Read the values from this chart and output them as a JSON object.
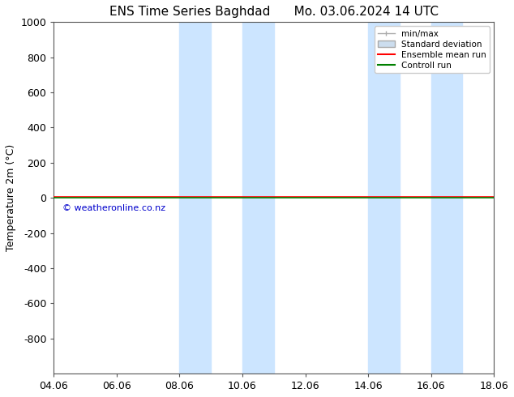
{
  "title": "ENS Time Series Baghdad",
  "title2": "Mo. 03.06.2024 14 UTC",
  "ylabel": "Temperature 2m (°C)",
  "xlabel": "",
  "xlim_dates": [
    "04.06",
    "06.06",
    "08.06",
    "10.06",
    "12.06",
    "14.06",
    "16.06",
    "18.06"
  ],
  "xtick_positions": [
    0,
    2,
    4,
    6,
    8,
    10,
    12,
    14
  ],
  "xtick_labels": [
    "04.06",
    "06.06",
    "08.06",
    "10.06",
    "12.06",
    "14.06",
    "16.06",
    "18.06"
  ],
  "ylim": [
    -1000,
    1000
  ],
  "ytick_positions": [
    -800,
    -600,
    -400,
    -200,
    0,
    200,
    400,
    600,
    800,
    1000
  ],
  "ytick_labels": [
    "-800",
    "-600",
    "-400",
    "-200",
    "0",
    "200",
    "400",
    "600",
    "800",
    "1000"
  ],
  "x_total": 14,
  "shaded_bands": [
    {
      "x_start": 4,
      "x_end": 5,
      "color": "#cce5ff"
    },
    {
      "x_start": 6,
      "x_end": 7,
      "color": "#cce5ff"
    },
    {
      "x_start": 10,
      "x_end": 11,
      "color": "#cce5ff"
    },
    {
      "x_start": 12,
      "x_end": 13,
      "color": "#cce5ff"
    }
  ],
  "horizontal_line_y": 0,
  "horizontal_line_color_green": "#008000",
  "horizontal_line_color_red": "#ff0000",
  "watermark": "© weatheronline.co.nz",
  "watermark_color": "#0000cc",
  "background_color": "#ffffff",
  "legend_entries": [
    {
      "label": "min/max",
      "color": "#aaaaaa",
      "lw": 1
    },
    {
      "label": "Standard deviation",
      "color": "#ccddee",
      "lw": 6
    },
    {
      "label": "Ensemble mean run",
      "color": "#ff0000",
      "lw": 1.5
    },
    {
      "label": "Controll run",
      "color": "#008000",
      "lw": 1.5
    }
  ],
  "figsize": [
    6.34,
    4.9
  ],
  "dpi": 100
}
